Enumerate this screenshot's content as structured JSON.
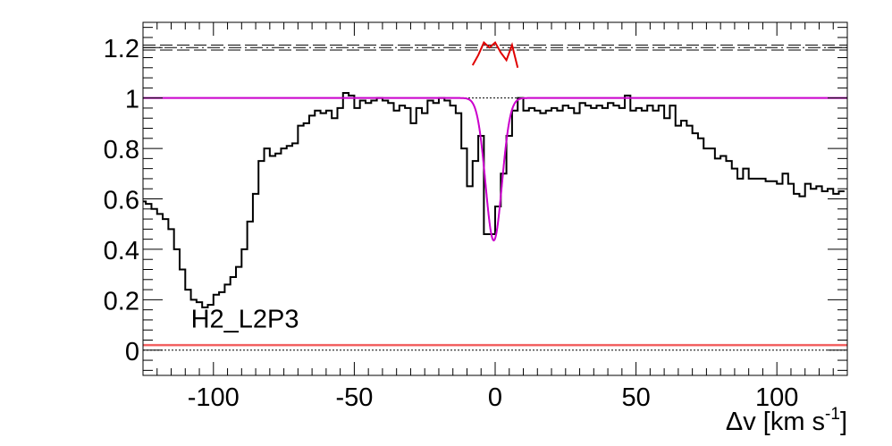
{
  "chart_data": {
    "type": "line",
    "title": "",
    "xlabel": "Δv [km s",
    "xlabel_sup": "-1",
    "xlabel_close": "]",
    "ylabel": "",
    "xlim": [
      -125,
      125
    ],
    "ylim": [
      -0.1,
      1.3
    ],
    "x_ticks": [
      -100,
      -50,
      0,
      50,
      100
    ],
    "x_tick_labels": [
      "-100",
      "-50",
      "0",
      "50",
      "100"
    ],
    "y_ticks": [
      0,
      0.2,
      0.4,
      0.6,
      0.8,
      1,
      1.2
    ],
    "y_tick_labels": [
      "0",
      "0.2",
      "0.4",
      "0.6",
      "0.8",
      "1",
      "1.2"
    ],
    "annotations": [
      {
        "text": "H2_L2P3",
        "x": -108,
        "y": 0.09
      }
    ],
    "colors": {
      "spectrum": "#000000",
      "model": "#cc00cc",
      "model_lower": "#2020cc",
      "residual": "#e00000",
      "error": "#f26060"
    },
    "series": [
      {
        "kind": "step",
        "x": [
          -125,
          -123,
          -121,
          -119,
          -117,
          -115,
          -113,
          -111,
          -109,
          -107,
          -105,
          -103,
          -101,
          -99,
          -97,
          -95,
          -93,
          -91,
          -89,
          -87,
          -85,
          -83,
          -81,
          -79,
          -77,
          -75,
          -73,
          -71,
          -69,
          -67,
          -65,
          -63,
          -61,
          -59,
          -57,
          -55,
          -53,
          -51,
          -49,
          -47,
          -45,
          -43,
          -41,
          -39,
          -37,
          -35,
          -33,
          -31,
          -29,
          -27,
          -25,
          -23,
          -21,
          -19,
          -17,
          -15,
          -13,
          -11,
          -9,
          -7,
          -5,
          -3,
          -1,
          1,
          3,
          5,
          7,
          9,
          11,
          13,
          15,
          17,
          19,
          21,
          23,
          25,
          27,
          29,
          31,
          33,
          35,
          37,
          39,
          41,
          43,
          45,
          47,
          49,
          51,
          53,
          55,
          57,
          59,
          61,
          63,
          65,
          67,
          69,
          71,
          73,
          75,
          77,
          79,
          81,
          83,
          85,
          87,
          89,
          91,
          93,
          95,
          97,
          99,
          101,
          103,
          105,
          107,
          109,
          111,
          113,
          115,
          117,
          119,
          121,
          123
        ],
        "y": [
          0.59,
          0.58,
          0.56,
          0.54,
          0.52,
          0.48,
          0.4,
          0.32,
          0.24,
          0.2,
          0.19,
          0.17,
          0.18,
          0.22,
          0.23,
          0.26,
          0.29,
          0.33,
          0.4,
          0.51,
          0.62,
          0.75,
          0.8,
          0.77,
          0.78,
          0.8,
          0.81,
          0.82,
          0.89,
          0.9,
          0.93,
          0.95,
          0.94,
          0.95,
          0.92,
          0.96,
          1.02,
          1.01,
          0.96,
          0.99,
          0.98,
          0.99,
          1.0,
          0.99,
          0.98,
          0.95,
          0.97,
          0.96,
          0.9,
          0.96,
          0.94,
          0.99,
          0.98,
          1.0,
          0.99,
          0.97,
          0.94,
          0.8,
          0.65,
          0.75,
          0.85,
          0.46,
          0.46,
          0.57,
          0.7,
          0.85,
          0.95,
          1.0,
          0.95,
          0.96,
          0.95,
          0.94,
          0.95,
          0.96,
          0.95,
          0.97,
          0.96,
          0.94,
          0.98,
          0.97,
          0.96,
          0.97,
          0.96,
          0.98,
          0.97,
          0.96,
          1.01,
          0.95,
          0.96,
          0.95,
          0.97,
          0.95,
          0.97,
          0.92,
          0.97,
          0.89,
          0.91,
          0.89,
          0.86,
          0.84,
          0.8,
          0.8,
          0.76,
          0.77,
          0.75,
          0.72,
          0.68,
          0.72,
          0.68,
          0.68,
          0.68,
          0.67,
          0.67,
          0.66,
          0.7,
          0.66,
          0.62,
          0.61,
          0.66,
          0.64,
          0.65,
          0.63,
          0.64,
          0.62,
          0.63
        ]
      },
      {
        "kind": "profile",
        "name": "",
        "center": -0.5,
        "depth": 0.565,
        "sigma": 2.9
      },
      {
        "kind": "residual",
        "x": [
          -8,
          -6,
          -4,
          -2,
          0,
          2,
          4,
          6,
          8
        ],
        "y": [
          1.13,
          1.17,
          1.22,
          1.2,
          1.22,
          1.18,
          1.15,
          1.21,
          1.12
        ]
      },
      {
        "kind": "error",
        "value": 0.02
      }
    ],
    "reference_lines": {
      "continuum": 1.0,
      "zero": 0.0,
      "upper_band": [
        1.19,
        1.2,
        1.21
      ]
    },
    "grid": false,
    "legend": "none"
  }
}
